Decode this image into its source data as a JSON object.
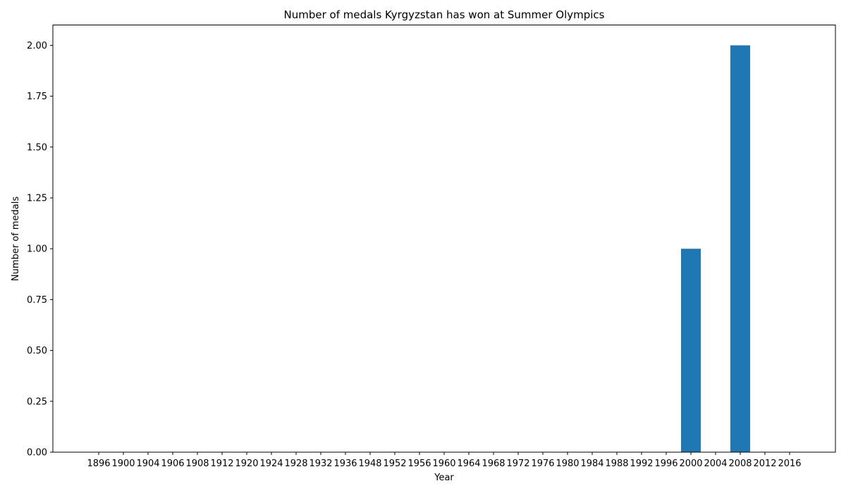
{
  "chart_data": {
    "type": "bar",
    "title": "Number of medals Kyrgyzstan has won at Summer Olympics",
    "xlabel": "Year",
    "ylabel": "Number of medals",
    "categories": [
      "1896",
      "1900",
      "1904",
      "1906",
      "1908",
      "1912",
      "1920",
      "1924",
      "1928",
      "1932",
      "1936",
      "1948",
      "1952",
      "1956",
      "1960",
      "1964",
      "1968",
      "1972",
      "1976",
      "1980",
      "1984",
      "1988",
      "1992",
      "1996",
      "2000",
      "2004",
      "2008",
      "2012",
      "2016"
    ],
    "values": [
      0,
      0,
      0,
      0,
      0,
      0,
      0,
      0,
      0,
      0,
      0,
      0,
      0,
      0,
      0,
      0,
      0,
      0,
      0,
      0,
      0,
      0,
      0,
      0,
      1,
      0,
      2,
      0,
      0
    ],
    "ylim": [
      0,
      2.1
    ],
    "yticks": [
      "0.00",
      "0.25",
      "0.50",
      "0.75",
      "1.00",
      "1.25",
      "1.50",
      "1.75",
      "2.00"
    ],
    "bar_color": "#1f77b4",
    "grid": false,
    "legend": "none"
  }
}
